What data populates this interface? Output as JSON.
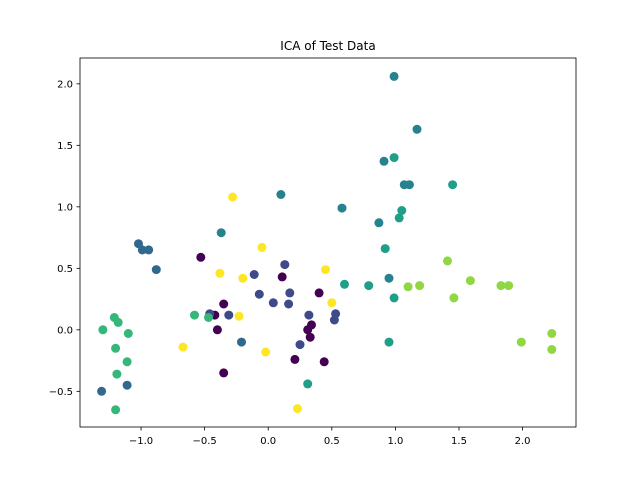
{
  "chart_data": {
    "type": "scatter",
    "title": "ICA of Test Data",
    "xlabel": "",
    "ylabel": "",
    "xlim": [
      -1.48,
      2.42
    ],
    "ylim": [
      -0.79,
      2.21
    ],
    "grid": false,
    "legend": "none",
    "x_ticks": [
      -1.0,
      -0.5,
      0.0,
      0.5,
      1.0,
      1.5,
      2.0
    ],
    "x_tick_labels": [
      "−1.0",
      "−0.5",
      "0.0",
      "0.5",
      "1.0",
      "1.5",
      "2.0"
    ],
    "y_ticks": [
      -0.5,
      0.0,
      0.5,
      1.0,
      1.5,
      2.0
    ],
    "y_tick_labels": [
      "−0.5",
      "0.0",
      "0.5",
      "1.0",
      "1.5",
      "2.0"
    ],
    "groups": [
      {
        "color": "#440154",
        "points": [
          [
            -0.53,
            0.59
          ],
          [
            -0.42,
            0.12
          ],
          [
            -0.4,
            0.0
          ],
          [
            -0.35,
            0.21
          ],
          [
            -0.35,
            -0.35
          ],
          [
            0.11,
            0.43
          ],
          [
            0.21,
            -0.24
          ],
          [
            0.31,
            0.0
          ],
          [
            0.34,
            0.04
          ],
          [
            0.33,
            -0.06
          ],
          [
            0.4,
            0.3
          ],
          [
            0.44,
            -0.26
          ]
        ]
      },
      {
        "color": "#3e4a89",
        "points": [
          [
            -0.46,
            0.13
          ],
          [
            -0.31,
            0.12
          ],
          [
            -0.11,
            0.45
          ],
          [
            -0.07,
            0.29
          ],
          [
            0.04,
            0.22
          ],
          [
            0.13,
            0.53
          ],
          [
            0.16,
            0.21
          ],
          [
            0.17,
            0.3
          ],
          [
            0.25,
            -0.12
          ],
          [
            0.32,
            0.12
          ],
          [
            0.52,
            0.08
          ],
          [
            0.53,
            0.13
          ]
        ]
      },
      {
        "color": "#31688e",
        "points": [
          [
            -1.31,
            -0.5
          ],
          [
            -1.11,
            -0.45
          ],
          [
            -1.02,
            0.7
          ],
          [
            -0.99,
            0.65
          ],
          [
            -0.94,
            0.65
          ],
          [
            -0.88,
            0.49
          ],
          [
            -0.21,
            -0.1
          ]
        ]
      },
      {
        "color": "#26828e",
        "points": [
          [
            0.1,
            1.1
          ],
          [
            -0.37,
            0.79
          ],
          [
            0.58,
            0.99
          ],
          [
            0.87,
            0.87
          ],
          [
            0.91,
            1.37
          ],
          [
            0.95,
            0.42
          ],
          [
            0.99,
            2.06
          ],
          [
            1.07,
            1.18
          ],
          [
            1.11,
            1.18
          ],
          [
            1.17,
            1.63
          ]
        ]
      },
      {
        "color": "#1f9e89",
        "points": [
          [
            0.31,
            -0.44
          ],
          [
            0.6,
            0.37
          ],
          [
            0.79,
            0.36
          ],
          [
            0.92,
            0.66
          ],
          [
            0.95,
            -0.1
          ],
          [
            0.99,
            0.26
          ],
          [
            0.99,
            1.4
          ],
          [
            1.03,
            0.91
          ],
          [
            1.05,
            0.97
          ],
          [
            1.45,
            1.18
          ]
        ]
      },
      {
        "color": "#35b779",
        "points": [
          [
            -1.3,
            0.0
          ],
          [
            -1.21,
            0.1
          ],
          [
            -1.18,
            0.06
          ],
          [
            -1.2,
            -0.15
          ],
          [
            -1.2,
            -0.65
          ],
          [
            -1.19,
            -0.36
          ],
          [
            -1.1,
            -0.03
          ],
          [
            -1.11,
            -0.26
          ],
          [
            -0.58,
            0.12
          ],
          [
            -0.47,
            0.1
          ]
        ]
      },
      {
        "color": "#90d743",
        "points": [
          [
            1.1,
            0.35
          ],
          [
            1.19,
            0.36
          ],
          [
            1.41,
            0.56
          ],
          [
            1.46,
            0.26
          ],
          [
            1.59,
            0.4
          ],
          [
            1.83,
            0.36
          ],
          [
            1.89,
            0.36
          ],
          [
            1.99,
            -0.1
          ],
          [
            2.23,
            -0.03
          ],
          [
            2.23,
            -0.16
          ]
        ]
      },
      {
        "color": "#fde725",
        "points": [
          [
            -0.67,
            -0.14
          ],
          [
            -0.38,
            0.46
          ],
          [
            -0.28,
            1.08
          ],
          [
            -0.23,
            0.11
          ],
          [
            -0.2,
            0.42
          ],
          [
            -0.05,
            0.67
          ],
          [
            -0.02,
            -0.18
          ],
          [
            0.23,
            -0.64
          ],
          [
            0.45,
            0.49
          ],
          [
            0.5,
            0.22
          ]
        ]
      }
    ]
  }
}
